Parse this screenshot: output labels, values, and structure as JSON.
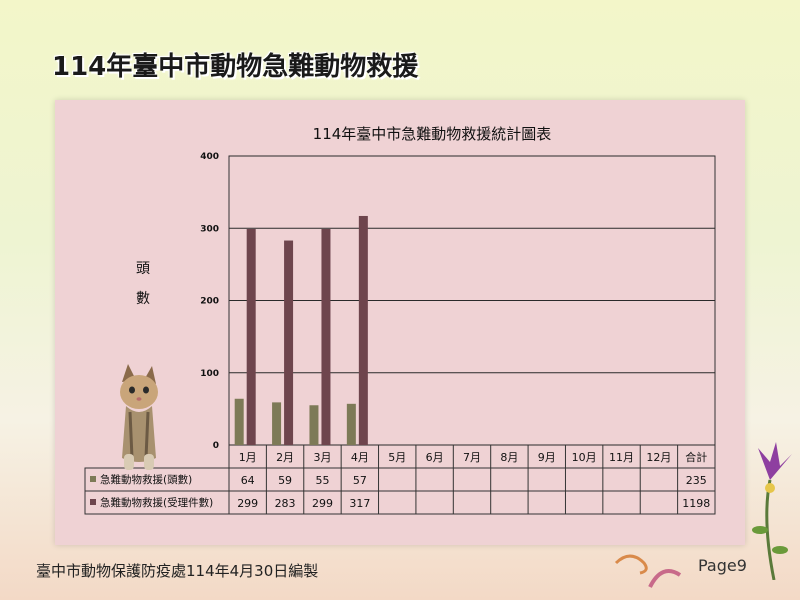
{
  "slide": {
    "title": "114年臺中市動物急難動物救援",
    "footer": "臺中市動物保護防疫處114年4月30日編製",
    "page": "Page9"
  },
  "chart_data": {
    "type": "bar",
    "title": "114年臺中市急難動物救援統計圖表",
    "ylabel": "頭數",
    "ylim": [
      0,
      400
    ],
    "yticks": [
      0,
      100,
      200,
      300,
      400
    ],
    "grid": true,
    "legend": "table-left",
    "categories": [
      "1月",
      "2月",
      "3月",
      "4月",
      "5月",
      "6月",
      "7月",
      "8月",
      "9月",
      "10月",
      "11月",
      "12月"
    ],
    "total_label": "合計",
    "series": [
      {
        "name": "急難動物救援(頭數)",
        "color": "#7d7a57",
        "values": [
          64,
          59,
          55,
          57,
          null,
          null,
          null,
          null,
          null,
          null,
          null,
          null
        ],
        "total": 235
      },
      {
        "name": "急難動物救援(受理件數)",
        "color": "#6e454d",
        "values": [
          299,
          283,
          299,
          317,
          null,
          null,
          null,
          null,
          null,
          null,
          null,
          null
        ],
        "total": 1198
      }
    ]
  }
}
